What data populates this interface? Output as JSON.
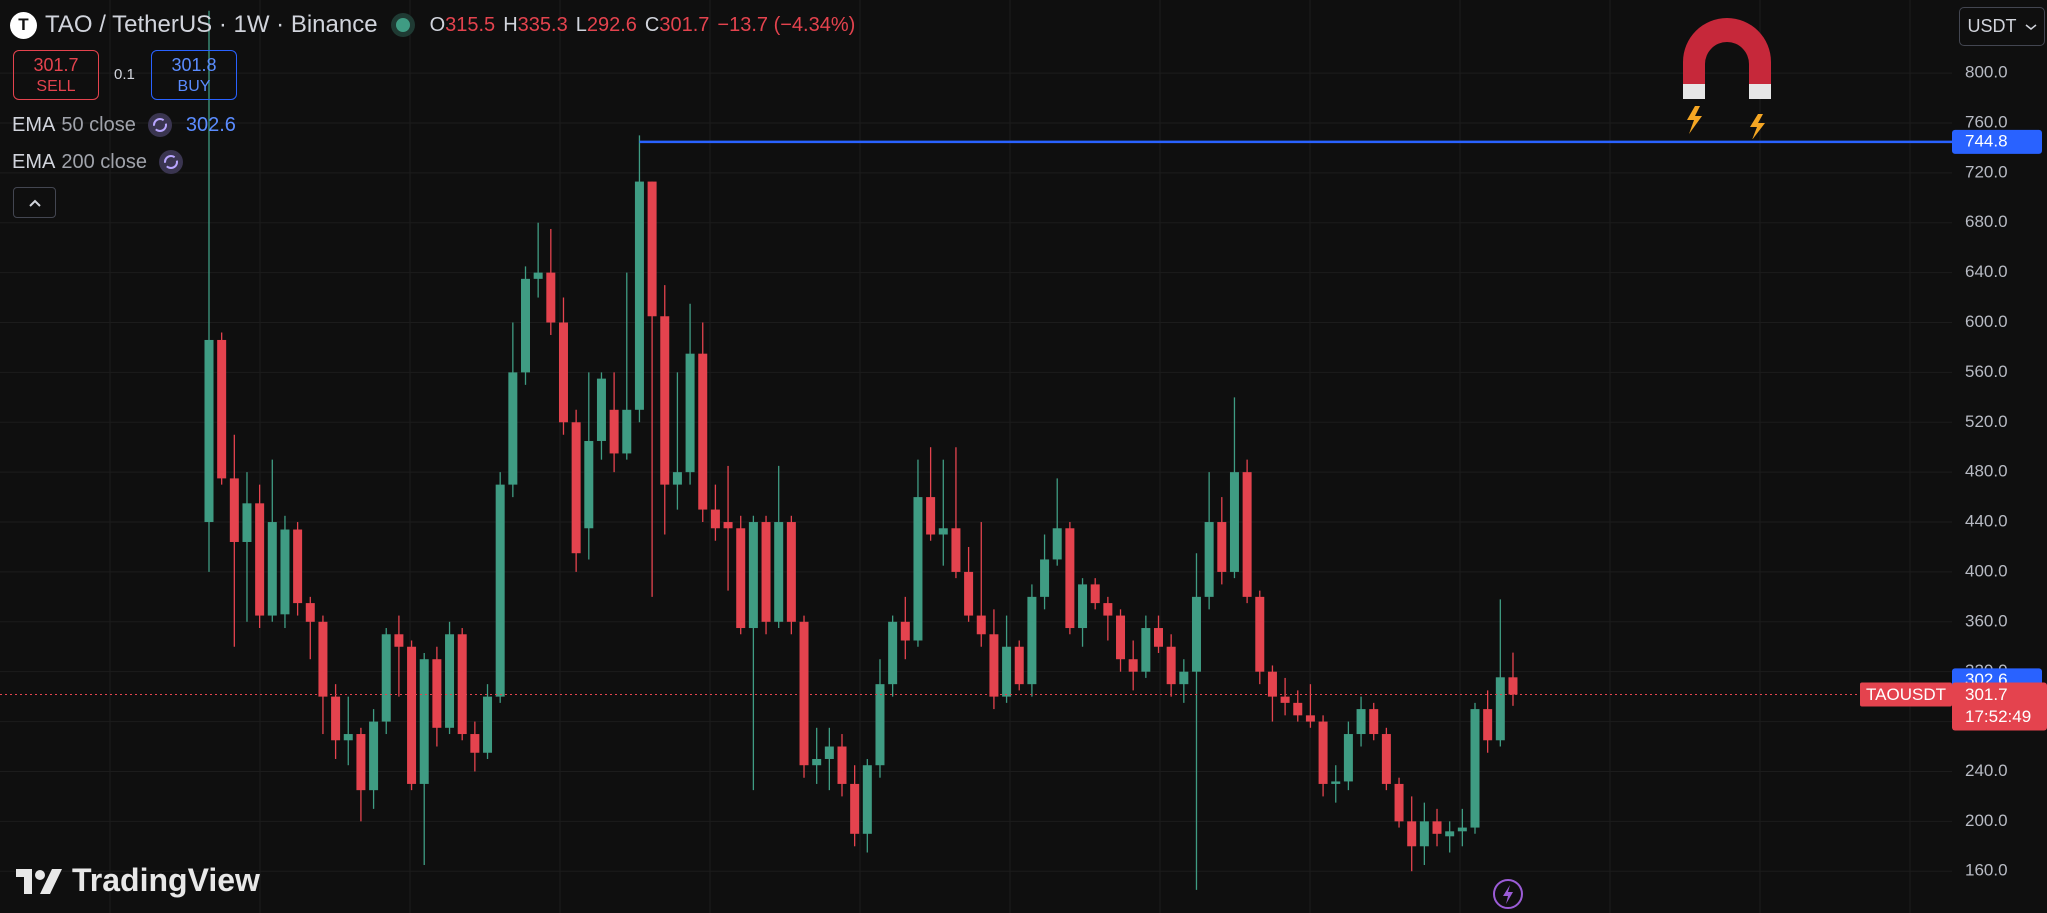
{
  "header": {
    "icon": "T",
    "symbol": "TAO / TetherUS · 1W · Binance",
    "o": "O",
    "h": "H",
    "l": "L",
    "c": "C",
    "change": "−13.7 (−4.34%)"
  },
  "trade": {
    "sell": 301.7,
    "sell_label": "SELL",
    "spread": 0.1,
    "buy": 301.8,
    "buy_label": "BUY"
  },
  "indicators": [
    {
      "name": "EMA",
      "params": "50 close",
      "value": 302.6
    },
    {
      "name": "EMA",
      "params": "200 close"
    }
  ],
  "currency": "USDT",
  "logo": "TradingView",
  "chart_data": {
    "type": "candlestick",
    "up_color": "#3f9c83",
    "down_color": "#e4434e",
    "open": [
      440,
      586,
      475,
      424,
      455,
      365,
      366,
      434,
      375,
      360,
      300,
      265,
      270,
      225,
      280,
      350,
      340,
      230,
      330,
      275,
      350,
      270,
      255,
      300,
      470,
      560,
      635,
      640,
      600,
      520,
      435,
      505,
      530,
      495,
      530,
      713,
      605,
      470,
      480,
      575,
      450,
      440,
      435,
      355,
      440,
      360,
      440,
      360,
      245,
      250,
      260,
      230,
      190,
      245,
      310,
      360,
      345,
      460,
      430,
      435,
      400,
      365,
      350,
      300,
      340,
      310,
      380,
      410,
      435,
      355,
      390,
      375,
      365,
      330,
      320,
      355,
      340,
      310,
      320,
      380,
      440,
      400,
      480,
      380,
      320,
      300,
      295,
      285,
      280,
      230,
      232,
      270,
      290,
      270,
      230,
      200,
      180,
      200,
      188,
      192,
      195,
      290,
      265,
      315.5
    ],
    "high": [
      850,
      592,
      510,
      480,
      470,
      490,
      445,
      440,
      380,
      365,
      310,
      300,
      275,
      290,
      355,
      365,
      345,
      335,
      340,
      360,
      355,
      280,
      310,
      480,
      600,
      645,
      680,
      675,
      620,
      530,
      560,
      560,
      560,
      640,
      750,
      713,
      630,
      560,
      615,
      600,
      470,
      485,
      445,
      445,
      445,
      485,
      445,
      365,
      275,
      275,
      270,
      245,
      250,
      330,
      365,
      380,
      490,
      500,
      490,
      500,
      420,
      440,
      370,
      365,
      345,
      390,
      430,
      475,
      440,
      395,
      395,
      380,
      370,
      345,
      365,
      365,
      350,
      330,
      415,
      480,
      460,
      540,
      490,
      385,
      325,
      315,
      305,
      310,
      285,
      245,
      280,
      300,
      295,
      275,
      235,
      220,
      215,
      210,
      200,
      210,
      295,
      305,
      378,
      335.3
    ],
    "low": [
      400,
      470,
      340,
      360,
      355,
      360,
      355,
      365,
      330,
      270,
      250,
      245,
      200,
      210,
      270,
      300,
      225,
      165,
      260,
      270,
      265,
      240,
      250,
      295,
      460,
      550,
      620,
      590,
      510,
      400,
      410,
      490,
      480,
      490,
      520,
      380,
      430,
      450,
      470,
      440,
      425,
      385,
      350,
      225,
      350,
      355,
      350,
      235,
      230,
      225,
      220,
      180,
      175,
      235,
      300,
      330,
      340,
      425,
      405,
      395,
      360,
      340,
      290,
      295,
      305,
      300,
      370,
      405,
      350,
      340,
      370,
      345,
      320,
      305,
      315,
      335,
      300,
      295,
      145,
      370,
      390,
      395,
      375,
      310,
      280,
      285,
      280,
      275,
      220,
      215,
      225,
      260,
      265,
      225,
      195,
      160,
      165,
      180,
      175,
      180,
      190,
      255,
      260,
      292.6
    ],
    "close": [
      586,
      475,
      424,
      455,
      365,
      440,
      434,
      375,
      360,
      300,
      265,
      270,
      225,
      280,
      350,
      340,
      230,
      330,
      275,
      350,
      270,
      255,
      300,
      470,
      560,
      635,
      640,
      600,
      520,
      415,
      505,
      555,
      495,
      530,
      713,
      605,
      470,
      480,
      575,
      450,
      435,
      435,
      355,
      440,
      360,
      440,
      360,
      245,
      250,
      260,
      230,
      190,
      245,
      310,
      360,
      345,
      460,
      430,
      435,
      400,
      365,
      350,
      300,
      340,
      310,
      380,
      410,
      435,
      355,
      390,
      375,
      365,
      330,
      320,
      355,
      340,
      310,
      320,
      380,
      440,
      400,
      480,
      380,
      320,
      300,
      295,
      285,
      280,
      230,
      232,
      270,
      290,
      270,
      230,
      200,
      180,
      200,
      190,
      192,
      195,
      290,
      265,
      315.5,
      301.7
    ],
    "ylim": [
      126.5,
      858.6
    ],
    "yticks": [
      {
        "value": 160,
        "label": "160.0"
      },
      {
        "value": 200,
        "label": "200.0"
      },
      {
        "value": 240,
        "label": "240.0"
      },
      {
        "value": 280,
        "label": "280.0"
      },
      {
        "value": 320,
        "label": "320.0"
      },
      {
        "value": 360,
        "label": "360.0"
      },
      {
        "value": 400,
        "label": "400.0"
      },
      {
        "value": 440,
        "label": "440.0"
      },
      {
        "value": 480,
        "label": "480.0"
      },
      {
        "value": 520,
        "label": "520.0"
      },
      {
        "value": 560,
        "label": "560.0"
      },
      {
        "value": 600,
        "label": "600.0"
      },
      {
        "value": 640,
        "label": "640.0"
      },
      {
        "value": 680,
        "label": "680.0"
      },
      {
        "value": 720,
        "label": "720.0"
      },
      {
        "value": 760,
        "label": "760.0"
      },
      {
        "value": 800,
        "label": "800.0"
      }
    ],
    "grid": true,
    "hline": {
      "value": 744.8,
      "color": "#2962ff"
    },
    "symbol_label": "TAOUSDT",
    "countdown": "17:52:49"
  }
}
